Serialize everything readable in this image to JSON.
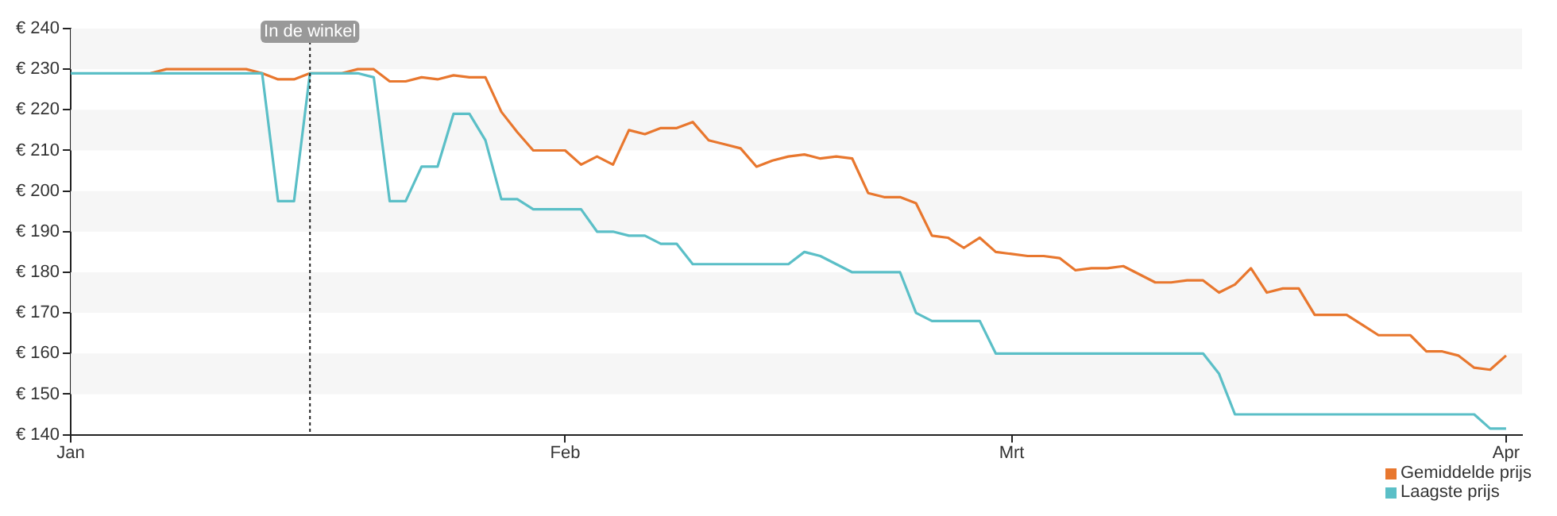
{
  "chart_data": {
    "type": "line",
    "xlim": [
      "--01-01",
      "--04-02"
    ],
    "xticks": [
      {
        "value": "--01-01",
        "label": "Jan"
      },
      {
        "value": "--02-01",
        "label": "Feb"
      },
      {
        "value": "--03-01",
        "label": "Mrt"
      },
      {
        "value": "--04-01",
        "label": "Apr"
      }
    ],
    "ylim": [
      140,
      240
    ],
    "yticks": [
      {
        "value": 140,
        "label": "€ 140"
      },
      {
        "value": 150,
        "label": "€ 150"
      },
      {
        "value": 160,
        "label": "€ 160"
      },
      {
        "value": 170,
        "label": "€ 170"
      },
      {
        "value": 180,
        "label": "€ 180"
      },
      {
        "value": 190,
        "label": "€ 190"
      },
      {
        "value": 200,
        "label": "€ 200"
      },
      {
        "value": 210,
        "label": "€ 210"
      },
      {
        "value": 220,
        "label": "€ 220"
      },
      {
        "value": 230,
        "label": "€ 230"
      },
      {
        "value": 240,
        "label": "€ 240"
      }
    ],
    "bands": [
      {
        "axis": "y",
        "from": 230,
        "to": 240,
        "color": "#f6f6f6"
      },
      {
        "axis": "y",
        "from": 210,
        "to": 220,
        "color": "#f6f6f6"
      },
      {
        "axis": "y",
        "from": 190,
        "to": 200,
        "color": "#f6f6f6"
      },
      {
        "axis": "y",
        "from": 170,
        "to": 180,
        "color": "#f6f6f6"
      },
      {
        "axis": "y",
        "from": 150,
        "to": 160,
        "color": "#f6f6f6"
      }
    ],
    "legend": "bottom right",
    "marker": "none",
    "line_style": "solid",
    "ref_lines": [
      {
        "axis": "x",
        "value": "--01-16",
        "label": "In de winkel",
        "line_style": "dotted",
        "color": "#222222"
      }
    ],
    "x": [
      "--01-01",
      "--01-02",
      "--01-03",
      "--01-04",
      "--01-05",
      "--01-06",
      "--01-07",
      "--01-08",
      "--01-09",
      "--01-10",
      "--01-11",
      "--01-12",
      "--01-13",
      "--01-14",
      "--01-15",
      "--01-16",
      "--01-17",
      "--01-18",
      "--01-19",
      "--01-20",
      "--01-21",
      "--01-22",
      "--01-23",
      "--01-24",
      "--01-25",
      "--01-26",
      "--01-27",
      "--01-28",
      "--01-29",
      "--01-30",
      "--01-31",
      "--02-01",
      "--02-02",
      "--02-03",
      "--02-04",
      "--02-05",
      "--02-06",
      "--02-07",
      "--02-08",
      "--02-09",
      "--02-10",
      "--02-11",
      "--02-12",
      "--02-13",
      "--02-14",
      "--02-15",
      "--02-16",
      "--02-17",
      "--02-18",
      "--02-19",
      "--02-20",
      "--02-21",
      "--02-22",
      "--02-23",
      "--02-24",
      "--02-25",
      "--02-26",
      "--02-27",
      "--02-28",
      "--03-01",
      "--03-02",
      "--03-03",
      "--03-04",
      "--03-05",
      "--03-06",
      "--03-07",
      "--03-08",
      "--03-09",
      "--03-10",
      "--03-11",
      "--03-12",
      "--03-13",
      "--03-14",
      "--03-15",
      "--03-16",
      "--03-17",
      "--03-18",
      "--03-19",
      "--03-20",
      "--03-21",
      "--03-22",
      "--03-23",
      "--03-24",
      "--03-25",
      "--03-26",
      "--03-27",
      "--03-28",
      "--03-29",
      "--03-30",
      "--03-31",
      "--04-01"
    ],
    "series": [
      {
        "name": "Gemiddelde prijs",
        "color": "#e8772e",
        "values": [
          null,
          null,
          null,
          null,
          null,
          229,
          230,
          230,
          230,
          230,
          230,
          230,
          229,
          227.5,
          227.5,
          229,
          229,
          229,
          230,
          230,
          227,
          227,
          228,
          227.5,
          228.5,
          228,
          228,
          219.5,
          214.5,
          210,
          210,
          210,
          206.5,
          208.5,
          206.5,
          215,
          214,
          215.5,
          215.5,
          217,
          212.5,
          211.5,
          210.5,
          206,
          207.5,
          208.5,
          209,
          208,
          208.5,
          208,
          199.5,
          198.5,
          198.5,
          197,
          189,
          188.5,
          186,
          188.5,
          185,
          184.5,
          184,
          184,
          183.5,
          180.5,
          181,
          181,
          181.5,
          179.5,
          177.5,
          177.5,
          178,
          178,
          175,
          177,
          181,
          175,
          176,
          176,
          169.5,
          169.5,
          169.5,
          167,
          164.5,
          164.5,
          164.5,
          160.5,
          160.5,
          159.5,
          156.5,
          156,
          159.5
        ]
      },
      {
        "name": "Laagste prijs",
        "color": "#5bbfc7",
        "values": [
          229,
          229,
          229,
          229,
          229,
          229,
          229,
          229,
          229,
          229,
          229,
          229,
          229,
          197.5,
          197.5,
          229,
          229,
          229,
          229,
          228,
          197.5,
          197.5,
          206,
          206,
          219,
          219,
          212.5,
          198,
          198,
          195.5,
          195.5,
          195.5,
          195.5,
          190,
          190,
          189,
          189,
          187,
          187,
          182,
          182,
          182,
          182,
          182,
          182,
          182,
          185,
          184,
          182,
          180,
          180,
          180,
          180,
          170,
          168,
          168,
          168,
          168,
          160,
          160,
          160,
          160,
          160,
          160,
          160,
          160,
          160,
          160,
          160,
          160,
          160,
          160,
          155,
          145,
          145,
          145,
          145,
          145,
          145,
          145,
          145,
          145,
          145,
          145,
          145,
          145,
          145,
          145,
          145,
          141.5,
          141.5
        ]
      }
    ]
  }
}
